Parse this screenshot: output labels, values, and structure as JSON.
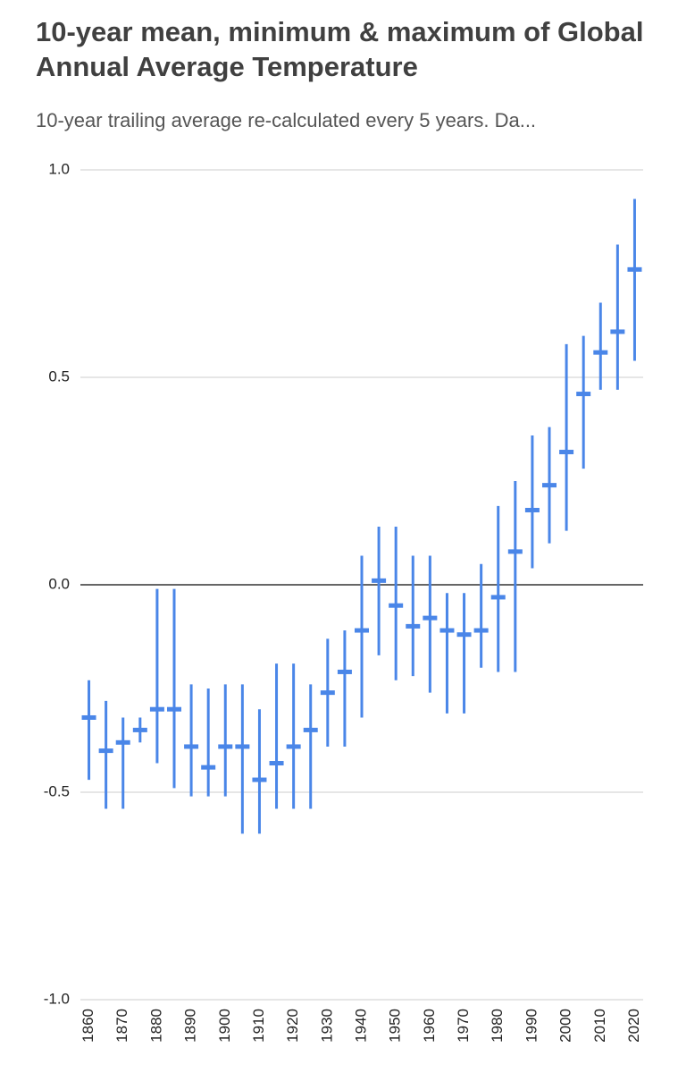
{
  "chart_data": {
    "type": "errorbar",
    "title": "10-year mean, minimum & maximum of Global Annual Average Temperature",
    "subtitle": "10-year trailing average re-calculated every 5 years. Da...",
    "color": "#4a86e8",
    "x": [
      1860,
      1865,
      1870,
      1875,
      1880,
      1885,
      1890,
      1895,
      1900,
      1905,
      1910,
      1915,
      1920,
      1925,
      1930,
      1935,
      1940,
      1945,
      1950,
      1955,
      1960,
      1965,
      1970,
      1975,
      1980,
      1985,
      1990,
      1995,
      2000,
      2005,
      2010,
      2015,
      2020
    ],
    "mean": [
      -0.32,
      -0.4,
      -0.38,
      -0.35,
      -0.3,
      -0.3,
      -0.39,
      -0.44,
      -0.39,
      -0.39,
      -0.47,
      -0.43,
      -0.39,
      -0.35,
      -0.26,
      -0.21,
      -0.11,
      0.01,
      -0.05,
      -0.1,
      -0.08,
      -0.11,
      -0.12,
      -0.11,
      -0.03,
      0.08,
      0.18,
      0.24,
      0.32,
      0.46,
      0.56,
      0.61,
      0.76
    ],
    "low": [
      -0.47,
      -0.54,
      -0.54,
      -0.38,
      -0.43,
      -0.49,
      -0.51,
      -0.51,
      -0.51,
      -0.6,
      -0.6,
      -0.54,
      -0.54,
      -0.54,
      -0.39,
      -0.39,
      -0.32,
      -0.17,
      -0.23,
      -0.22,
      -0.26,
      -0.31,
      -0.31,
      -0.2,
      -0.21,
      -0.21,
      0.04,
      0.1,
      0.13,
      0.28,
      0.47,
      0.47,
      0.54
    ],
    "high": [
      -0.23,
      -0.28,
      -0.32,
      -0.32,
      -0.01,
      -0.01,
      -0.24,
      -0.25,
      -0.24,
      -0.24,
      -0.3,
      -0.19,
      -0.19,
      -0.24,
      -0.13,
      -0.11,
      0.07,
      0.14,
      0.14,
      0.07,
      0.07,
      -0.02,
      -0.02,
      0.05,
      0.19,
      0.25,
      0.36,
      0.38,
      0.58,
      0.6,
      0.68,
      0.82,
      0.93
    ],
    "xlim": [
      1857.5,
      2022.5
    ],
    "xticks": [
      1860,
      1870,
      1880,
      1890,
      1900,
      1910,
      1920,
      1930,
      1940,
      1950,
      1960,
      1970,
      1980,
      1990,
      2000,
      2010,
      2020
    ],
    "ylim": [
      -1,
      1
    ],
    "yticks": [
      {
        "value": -1,
        "label": "-1.0"
      },
      -0.5,
      {
        "value": 0,
        "label": "0.0"
      },
      0.5,
      {
        "value": 1,
        "label": "1.0"
      }
    ],
    "grid": true
  }
}
